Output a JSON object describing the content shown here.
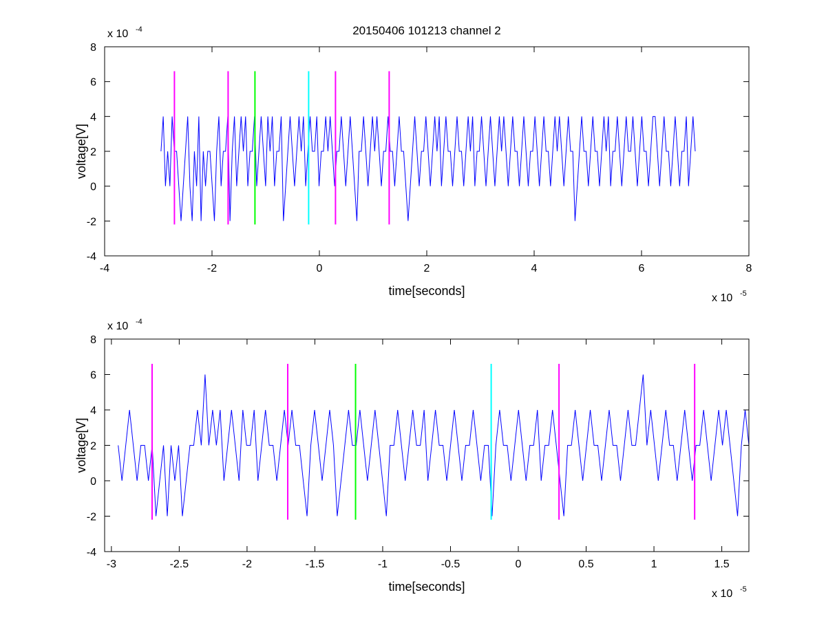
{
  "figure": {
    "title": "20150406 101213 channel 2"
  },
  "chart_data": [
    {
      "type": "line",
      "title": "20150406 101213 channel 2",
      "xlabel": "time[seconds]",
      "ylabel": "voltage[V]",
      "xlim": [
        -4e-05,
        8e-05
      ],
      "ylim": [
        -0.0004,
        0.0008
      ],
      "xticks": [
        "-4",
        "-2",
        "0",
        "2",
        "4",
        "6",
        "8"
      ],
      "xtick_values": [
        -4e-05,
        -2e-05,
        0,
        2e-05,
        4e-05,
        6e-05,
        8e-05
      ],
      "yticks": [
        "-4",
        "-2",
        "0",
        "2",
        "4",
        "6",
        "8"
      ],
      "ytick_values": [
        -0.0004,
        -0.0002,
        0,
        0.0002,
        0.0004,
        0.0006,
        0.0008
      ],
      "x_exponent": {
        "base": "x 10",
        "power": "-5"
      },
      "y_exponent": {
        "base": "x 10",
        "power": "-4"
      },
      "grid": false,
      "series": [
        {
          "color": "#0000ff",
          "x_start": -2.95e-05,
          "x_end": 7e-05,
          "quantum": 0.0002,
          "values_quanta": [
            1,
            2,
            0,
            1,
            0,
            2,
            1,
            1,
            0,
            -1,
            0,
            1,
            2,
            0,
            -1,
            1,
            0,
            2,
            -1,
            1,
            0,
            1,
            1,
            0,
            -1,
            1,
            2,
            0,
            1,
            1,
            2,
            -1,
            1,
            2,
            0,
            1,
            2,
            1,
            2,
            0,
            1,
            1,
            2,
            0,
            1,
            2,
            1,
            0,
            2,
            1,
            2,
            0,
            1,
            1,
            2,
            -1,
            0,
            1,
            2,
            1,
            0,
            1,
            2,
            1,
            2,
            0,
            1,
            2,
            1,
            1,
            2,
            0,
            1,
            1,
            2,
            1,
            2,
            1,
            0,
            1,
            1,
            2,
            1,
            0,
            1,
            2,
            1,
            0,
            -1,
            1,
            1,
            2,
            1,
            0,
            1,
            2,
            1,
            2,
            1,
            0,
            1,
            1,
            2,
            1,
            1,
            0,
            1,
            2,
            1,
            1,
            0,
            -1,
            0,
            1,
            2,
            1,
            0,
            1,
            1,
            2,
            1,
            0,
            1,
            2,
            1,
            2,
            0,
            1,
            2,
            1,
            1,
            0,
            1,
            2,
            1,
            1,
            0,
            1,
            2,
            1,
            2,
            0,
            1,
            1,
            2,
            1,
            0,
            1,
            2,
            1,
            0,
            1,
            2,
            1,
            2,
            1,
            0,
            1,
            2,
            1,
            1,
            0,
            1,
            2,
            1,
            0,
            1,
            1,
            2,
            1,
            0,
            1,
            2,
            1,
            1,
            0,
            1,
            2,
            1,
            2,
            1,
            0,
            1,
            2,
            1,
            1,
            -1,
            0,
            1,
            2,
            1,
            1,
            0,
            1,
            2,
            1,
            1,
            0,
            1,
            2,
            1,
            2,
            0,
            1,
            1,
            2,
            1,
            0,
            1,
            2,
            1,
            1,
            2,
            1,
            0,
            1,
            2,
            1,
            1,
            0,
            1,
            2,
            2,
            1,
            0,
            1,
            2,
            1,
            1,
            0,
            1,
            2,
            1,
            0,
            1,
            1,
            2,
            0,
            1,
            2,
            1
          ]
        },
        {
          "color": "#ff00ff",
          "spike_times": [
            -2.7e-05,
            -1.7e-05,
            3e-06,
            1.3e-05
          ],
          "spike_range": [
            -0.00022,
            0.00066
          ]
        },
        {
          "color": "#00ff00",
          "spike_times": [
            -1.2e-05
          ],
          "spike_range": [
            -0.00022,
            0.00066
          ]
        },
        {
          "color": "#00ffff",
          "spike_times": [
            -2e-06
          ],
          "spike_range": [
            -0.00022,
            0.00066
          ]
        }
      ]
    },
    {
      "type": "line",
      "xlabel": "time[seconds]",
      "ylabel": "voltage[V]",
      "xlim": [
        -3.05e-05,
        1.7e-05
      ],
      "ylim": [
        -0.0004,
        0.0008
      ],
      "xticks": [
        "-3",
        "-2.5",
        "-2",
        "-1.5",
        "-1",
        "-0.5",
        "0",
        "0.5",
        "1",
        "1.5"
      ],
      "xtick_values": [
        -3e-05,
        -2.5e-05,
        -2e-05,
        -1.5e-05,
        -1e-05,
        -5e-06,
        0,
        5e-06,
        1e-05,
        1.5e-05
      ],
      "yticks": [
        "-4",
        "-2",
        "0",
        "2",
        "4",
        "6",
        "8"
      ],
      "ytick_values": [
        -0.0004,
        -0.0002,
        0,
        0.0002,
        0.0004,
        0.0006,
        0.0008
      ],
      "x_exponent": {
        "base": "x 10",
        "power": "-5"
      },
      "y_exponent": {
        "base": "x 10",
        "power": "-4"
      },
      "grid": false,
      "series": [
        {
          "color": "#0000ff",
          "x_start": -2.95e-05,
          "x_end": 1.7e-05,
          "quantum": 0.0002,
          "values_quanta": [
            1,
            0,
            1,
            2,
            1,
            0,
            1,
            1,
            0,
            1,
            -1,
            0,
            1,
            -1,
            1,
            0,
            1,
            -1,
            0,
            1,
            1,
            2,
            1,
            3,
            1,
            2,
            1,
            2,
            0,
            1,
            2,
            1,
            0,
            2,
            1,
            1,
            2,
            0,
            1,
            2,
            1,
            1,
            0,
            1,
            2,
            1,
            2,
            1,
            1,
            0,
            -1,
            1,
            2,
            1,
            0,
            1,
            2,
            1,
            -1,
            0,
            1,
            2,
            1,
            1,
            2,
            1,
            0,
            1,
            2,
            1,
            0,
            -1,
            1,
            1,
            2,
            1,
            0,
            1,
            2,
            1,
            1,
            2,
            0,
            1,
            2,
            1,
            1,
            0,
            1,
            2,
            1,
            0,
            1,
            1,
            2,
            1,
            0,
            1,
            1,
            -1,
            1,
            2,
            1,
            1,
            0,
            1,
            2,
            1,
            0,
            1,
            1,
            2,
            0,
            1,
            1,
            2,
            1,
            0,
            -1,
            1,
            1,
            2,
            1,
            0,
            1,
            2,
            1,
            1,
            0,
            1,
            2,
            1,
            1,
            0,
            1,
            2,
            1,
            1,
            2,
            3,
            1,
            2,
            1,
            0,
            1,
            2,
            1,
            1,
            0,
            1,
            2,
            1,
            0,
            1,
            1,
            2,
            1,
            0,
            1,
            2,
            1,
            2,
            1,
            0,
            -1,
            1,
            2,
            1
          ]
        },
        {
          "color": "#ff00ff",
          "spike_times": [
            -2.7e-05,
            -1.7e-05,
            3e-06,
            1.3e-05
          ],
          "spike_range": [
            -0.00022,
            0.00066
          ]
        },
        {
          "color": "#00ff00",
          "spike_times": [
            -1.2e-05
          ],
          "spike_range": [
            -0.00022,
            0.00066
          ]
        },
        {
          "color": "#00ffff",
          "spike_times": [
            -2e-06
          ],
          "spike_range": [
            -0.00022,
            0.00066
          ]
        }
      ]
    }
  ]
}
